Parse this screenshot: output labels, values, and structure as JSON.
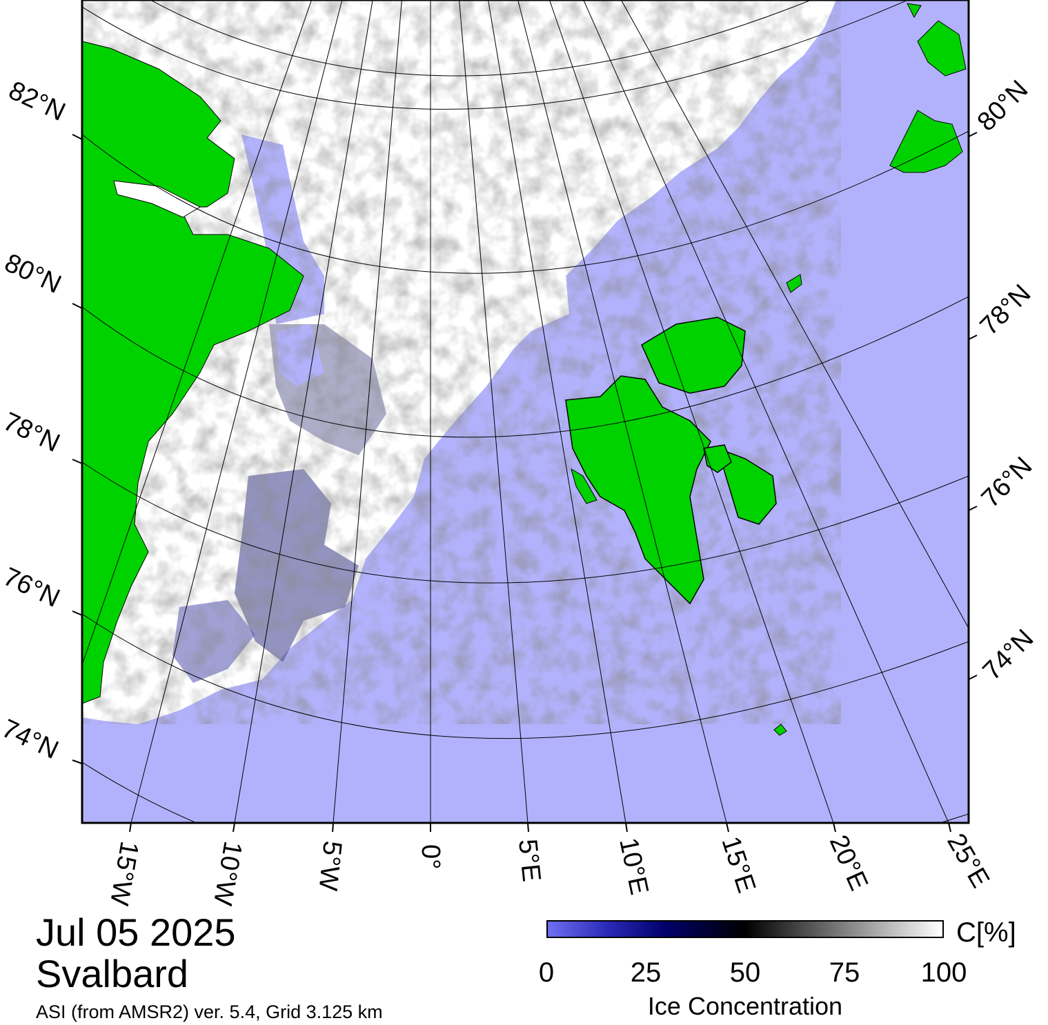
{
  "title": {
    "date": "Jul 05 2025",
    "region": "Svalbard",
    "product": "ASI (from AMSR2) ver. 5.4,  Grid 3.125 km"
  },
  "colorbar": {
    "unit": "C[%]",
    "title": "Ice Concentration",
    "ticks": [
      "0",
      "25",
      "50",
      "75",
      "100"
    ],
    "range": [
      0,
      100
    ]
  },
  "graticule": {
    "left_lat_labels": [
      "82°N",
      "80°N",
      "78°N",
      "76°N",
      "74°N"
    ],
    "right_lat_labels": [
      "80°N",
      "78°N",
      "76°N",
      "74°N"
    ],
    "lon_labels": [
      "15°W",
      "10°W",
      "5°W",
      "0°",
      "5°E",
      "10°E",
      "15°E",
      "20°E",
      "25°E"
    ]
  },
  "colors": {
    "open_water": "#b2b2fc",
    "land": "#00d200",
    "ice_full": "#ffffff",
    "coast_outline": "#000000",
    "grid": "#000000"
  }
}
